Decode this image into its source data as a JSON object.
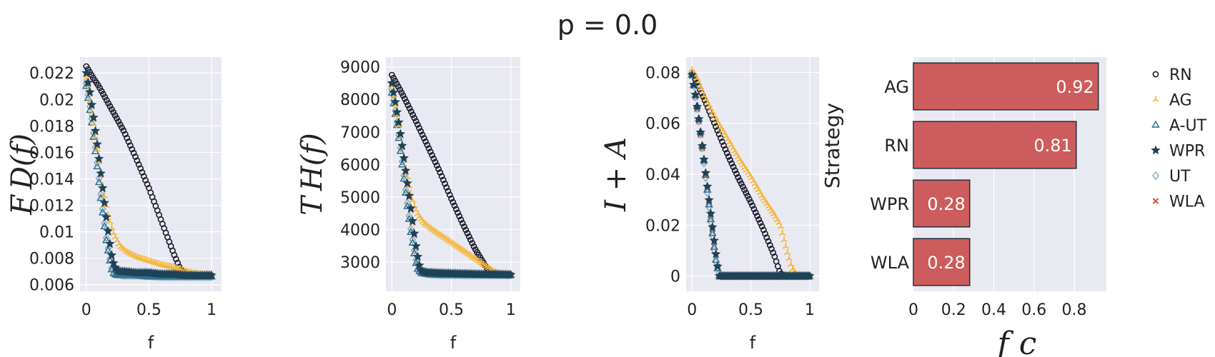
{
  "figure_title": "p = 0.0",
  "colors": {
    "RN": "#1b1b2b",
    "AG": "#f5b738",
    "A-UT": "#2f6f8c",
    "WPR": "#1e4257",
    "UT": "#7aa7bf",
    "WLA": "#d2552a",
    "bar": "#cd5c5c",
    "panel_bg": "#e9e9f2"
  },
  "chart_data": [
    {
      "type": "scatter",
      "xlabel": "f",
      "ylabel": "F_D(f)",
      "ylabel_display": "F D(f)",
      "xlim": [
        -0.05,
        1.08
      ],
      "ylim": [
        0.0055,
        0.0232
      ],
      "xticks": [
        0,
        0.5,
        1
      ],
      "xtick_labels": [
        "0",
        "0.5",
        "1"
      ],
      "yticks": [
        0.006,
        0.008,
        0.01,
        0.012,
        0.014,
        0.016,
        0.018,
        0.02,
        0.022
      ],
      "ytick_labels": [
        "0.006",
        "0.008",
        "0.01",
        "0.012",
        "0.014",
        "0.016",
        "0.018",
        "0.02",
        "0.022"
      ],
      "series": [
        {
          "name": "RN",
          "marker": "circle",
          "x": [
            0,
            0.05,
            0.1,
            0.2,
            0.3,
            0.4,
            0.5,
            0.6,
            0.7,
            0.75,
            0.8,
            0.9,
            1.0
          ],
          "y": [
            0.0225,
            0.0217,
            0.021,
            0.0193,
            0.0176,
            0.0155,
            0.0133,
            0.0108,
            0.0083,
            0.0072,
            0.0068,
            0.0067,
            0.0067
          ]
        },
        {
          "name": "AG",
          "marker": "tri",
          "x": [
            0,
            0.03,
            0.06,
            0.09,
            0.12,
            0.15,
            0.18,
            0.22,
            0.27,
            0.32,
            0.4,
            0.5,
            0.6,
            0.7,
            0.8,
            0.85,
            0.9,
            1.0
          ],
          "y": [
            0.0216,
            0.0198,
            0.018,
            0.016,
            0.0141,
            0.0124,
            0.011,
            0.0098,
            0.0089,
            0.0085,
            0.0081,
            0.0078,
            0.0075,
            0.0073,
            0.007,
            0.0069,
            0.0068,
            0.0068
          ]
        },
        {
          "name": "A-UT",
          "marker": "triangle",
          "x": [
            0,
            0.04,
            0.08,
            0.12,
            0.16,
            0.2,
            0.22,
            0.25,
            0.3,
            0.4,
            0.5,
            0.6,
            0.7,
            0.8,
            0.9,
            1.0
          ],
          "y": [
            0.021,
            0.0185,
            0.0155,
            0.0122,
            0.0093,
            0.0072,
            0.0068,
            0.0067,
            0.0067,
            0.0067,
            0.0066,
            0.0066,
            0.0066,
            0.0066,
            0.0066,
            0.0066
          ]
        },
        {
          "name": "WPR",
          "marker": "star",
          "x": [
            0,
            0.03,
            0.06,
            0.09,
            0.12,
            0.15,
            0.18,
            0.21,
            0.24,
            0.27,
            0.3,
            0.4,
            0.5,
            0.6,
            0.7,
            0.8,
            0.9,
            1.0
          ],
          "y": [
            0.022,
            0.0205,
            0.0185,
            0.0164,
            0.0141,
            0.0118,
            0.0096,
            0.0078,
            0.0071,
            0.007,
            0.007,
            0.0069,
            0.0069,
            0.0068,
            0.0068,
            0.0067,
            0.0067,
            0.0067
          ]
        },
        {
          "name": "UT",
          "marker": "diamond",
          "x": [
            0,
            0.04,
            0.08,
            0.12,
            0.16,
            0.2,
            0.24,
            0.3,
            0.4,
            0.6,
            0.8,
            1.0
          ],
          "y": [
            0.0212,
            0.0188,
            0.0158,
            0.0125,
            0.0095,
            0.0073,
            0.0068,
            0.0067,
            0.0067,
            0.0066,
            0.0066,
            0.0066
          ]
        },
        {
          "name": "WLA",
          "marker": "cross",
          "x": [
            0,
            0.03,
            0.06,
            0.09,
            0.12,
            0.15,
            0.18,
            0.21,
            0.24,
            0.3,
            0.5,
            0.7,
            1.0
          ],
          "y": [
            0.0219,
            0.0204,
            0.0184,
            0.0163,
            0.014,
            0.0117,
            0.0095,
            0.0077,
            0.0071,
            0.007,
            0.0069,
            0.0068,
            0.0067
          ]
        }
      ]
    },
    {
      "type": "scatter",
      "xlabel": "f",
      "ylabel": "T_H(f)",
      "ylabel_display": "T H(f)",
      "xlim": [
        -0.05,
        1.08
      ],
      "ylim": [
        2100,
        9300
      ],
      "xticks": [
        0,
        0.5,
        1
      ],
      "xtick_labels": [
        "0",
        "0.5",
        "1"
      ],
      "yticks": [
        3000,
        4000,
        5000,
        6000,
        7000,
        8000,
        9000
      ],
      "ytick_labels": [
        "3000",
        "4000",
        "5000",
        "6000",
        "7000",
        "8000",
        "9000"
      ],
      "series": [
        {
          "name": "RN",
          "marker": "circle",
          "x": [
            0,
            0.05,
            0.1,
            0.2,
            0.3,
            0.4,
            0.5,
            0.6,
            0.7,
            0.8,
            0.85,
            0.9,
            1.0
          ],
          "y": [
            8750,
            8420,
            8080,
            7350,
            6580,
            5800,
            4950,
            4150,
            3400,
            2800,
            2650,
            2620,
            2600
          ]
        },
        {
          "name": "AG",
          "marker": "tri",
          "x": [
            0,
            0.03,
            0.06,
            0.09,
            0.12,
            0.15,
            0.18,
            0.22,
            0.27,
            0.32,
            0.4,
            0.5,
            0.6,
            0.7,
            0.8,
            0.85,
            0.9,
            1.0
          ],
          "y": [
            8400,
            7800,
            7150,
            6450,
            5800,
            5250,
            4800,
            4450,
            4200,
            4050,
            3850,
            3600,
            3350,
            3100,
            2850,
            2720,
            2650,
            2620
          ]
        },
        {
          "name": "A-UT",
          "marker": "triangle",
          "x": [
            0,
            0.04,
            0.08,
            0.12,
            0.16,
            0.2,
            0.22,
            0.25,
            0.3,
            0.4,
            0.6,
            0.8,
            1.0
          ],
          "y": [
            8200,
            7300,
            6200,
            5000,
            3900,
            3000,
            2750,
            2650,
            2620,
            2600,
            2600,
            2600,
            2600
          ]
        },
        {
          "name": "WPR",
          "marker": "star",
          "x": [
            0,
            0.03,
            0.06,
            0.09,
            0.12,
            0.15,
            0.18,
            0.21,
            0.24,
            0.27,
            0.3,
            0.4,
            0.5,
            0.6,
            0.7,
            0.8,
            0.9,
            1.0
          ],
          "y": [
            8500,
            7900,
            7250,
            6500,
            5700,
            4900,
            4100,
            3300,
            2750,
            2700,
            2680,
            2660,
            2650,
            2640,
            2630,
            2620,
            2620,
            2610
          ]
        },
        {
          "name": "UT",
          "marker": "diamond",
          "x": [
            0,
            0.04,
            0.08,
            0.12,
            0.16,
            0.2,
            0.24,
            0.3,
            0.4,
            0.6,
            0.8,
            1.0
          ],
          "y": [
            8300,
            7400,
            6300,
            5100,
            4000,
            3100,
            2700,
            2630,
            2610,
            2600,
            2600,
            2600
          ]
        },
        {
          "name": "WLA",
          "marker": "cross",
          "x": [
            0,
            0.03,
            0.06,
            0.09,
            0.12,
            0.15,
            0.18,
            0.21,
            0.24,
            0.3,
            0.5,
            0.7,
            1.0
          ],
          "y": [
            8450,
            7850,
            7200,
            6450,
            5650,
            4850,
            4050,
            3250,
            2720,
            2670,
            2640,
            2620,
            2610
          ]
        }
      ]
    },
    {
      "type": "scatter",
      "xlabel": "f",
      "ylabel": "I + A",
      "ylabel_display": "I + A",
      "xlim": [
        -0.05,
        1.08
      ],
      "ylim": [
        -0.006,
        0.086
      ],
      "xticks": [
        0,
        0.5,
        1
      ],
      "xtick_labels": [
        "0",
        "0.5",
        "1"
      ],
      "yticks": [
        0,
        0.02,
        0.04,
        0.06,
        0.08
      ],
      "ytick_labels": [
        "0",
        "0.02",
        "0.04",
        "0.06",
        "0.08"
      ],
      "series": [
        {
          "name": "RN",
          "marker": "circle",
          "x": [
            0,
            0.1,
            0.2,
            0.3,
            0.4,
            0.5,
            0.6,
            0.7,
            0.75,
            0.8,
            0.9,
            1.0
          ],
          "y": [
            0.08,
            0.07,
            0.059,
            0.048,
            0.038,
            0.029,
            0.019,
            0.008,
            0.001,
            0,
            0,
            0
          ]
        },
        {
          "name": "AG",
          "marker": "tri",
          "x": [
            0,
            0.05,
            0.1,
            0.2,
            0.3,
            0.4,
            0.5,
            0.6,
            0.7,
            0.75,
            0.8,
            0.85,
            0.9,
            1.0
          ],
          "y": [
            0.081,
            0.077,
            0.071,
            0.062,
            0.054,
            0.046,
            0.039,
            0.031,
            0.024,
            0.02,
            0.011,
            0.003,
            0,
            0
          ]
        },
        {
          "name": "A-UT",
          "marker": "triangle",
          "x": [
            0,
            0.04,
            0.08,
            0.12,
            0.16,
            0.2,
            0.23,
            0.3,
            0.5,
            0.7,
            1.0
          ],
          "y": [
            0.079,
            0.068,
            0.054,
            0.038,
            0.022,
            0.007,
            0,
            0,
            0,
            0,
            0
          ]
        },
        {
          "name": "WPR",
          "marker": "star",
          "x": [
            0,
            0.03,
            0.06,
            0.09,
            0.12,
            0.15,
            0.18,
            0.21,
            0.23,
            0.3,
            0.5,
            0.7,
            1.0
          ],
          "y": [
            0.079,
            0.071,
            0.061,
            0.05,
            0.039,
            0.028,
            0.017,
            0.006,
            0,
            0,
            0,
            0,
            0
          ]
        },
        {
          "name": "UT",
          "marker": "diamond",
          "x": [
            0,
            0.04,
            0.08,
            0.12,
            0.16,
            0.2,
            0.24,
            0.3,
            0.5,
            1.0
          ],
          "y": [
            0.079,
            0.067,
            0.053,
            0.037,
            0.021,
            0.006,
            0,
            0,
            0,
            0
          ]
        },
        {
          "name": "WLA",
          "marker": "cross",
          "x": [
            0,
            0.03,
            0.06,
            0.09,
            0.12,
            0.15,
            0.18,
            0.21,
            0.23,
            0.4,
            0.7,
            1.0
          ],
          "y": [
            0.079,
            0.07,
            0.06,
            0.049,
            0.038,
            0.027,
            0.016,
            0.006,
            0,
            0,
            0,
            0
          ]
        }
      ]
    },
    {
      "type": "bar",
      "orientation": "horizontal",
      "categories": [
        "AG",
        "RN",
        "WPR",
        "WLA"
      ],
      "values": [
        0.92,
        0.81,
        0.28,
        0.28
      ],
      "value_labels": [
        "0.92",
        "0.81",
        "0.28",
        "0.28"
      ],
      "xlabel": "f_c",
      "xlabel_display": "f c",
      "ylabel": "Strategy",
      "xlim": [
        0,
        0.96
      ],
      "xticks": [
        0,
        0.2,
        0.4,
        0.6,
        0.8
      ],
      "xtick_labels": [
        "0",
        "0.2",
        "0.4",
        "0.6",
        "0.8"
      ]
    }
  ],
  "legend": {
    "placement": "right",
    "items": [
      {
        "name": "RN",
        "marker": "circle",
        "icon": "circle-marker-icon"
      },
      {
        "name": "AG",
        "marker": "tri",
        "icon": "tri-down-marker-icon"
      },
      {
        "name": "A-UT",
        "marker": "triangle",
        "icon": "triangle-marker-icon"
      },
      {
        "name": "WPR",
        "marker": "star",
        "icon": "star-marker-icon"
      },
      {
        "name": "UT",
        "marker": "diamond",
        "icon": "diamond-marker-icon"
      },
      {
        "name": "WLA",
        "marker": "cross",
        "icon": "cross-marker-icon"
      }
    ]
  }
}
